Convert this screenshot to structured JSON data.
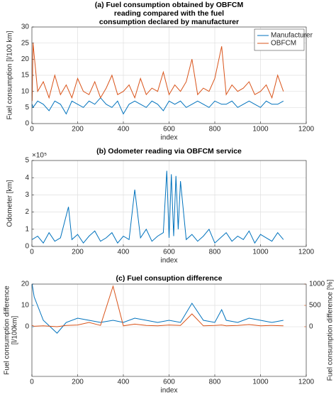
{
  "chart_data": [
    {
      "type": "line",
      "title": [
        "(a) Fuel consumption obtained by OBFCM",
        "reading compared with the fuel",
        "consumption declared by manufacturer"
      ],
      "xlabel": "index",
      "ylabel": [
        "Fuel consumption [l/100 km]"
      ],
      "x": [
        1,
        5,
        25,
        50,
        75,
        100,
        125,
        150,
        175,
        200,
        225,
        250,
        275,
        300,
        325,
        350,
        375,
        400,
        425,
        450,
        475,
        500,
        525,
        550,
        575,
        600,
        625,
        650,
        675,
        700,
        725,
        750,
        775,
        800,
        830,
        850,
        875,
        900,
        925,
        950,
        975,
        1000,
        1025,
        1050,
        1075,
        1100
      ],
      "series": [
        {
          "name": "Manufacturer",
          "color": "#0072BD",
          "values": [
            6,
            5,
            7,
            6,
            4,
            7,
            6,
            3,
            7,
            6,
            5,
            7,
            6,
            8,
            6,
            5,
            7,
            3,
            6,
            7,
            6,
            5,
            7,
            6,
            4,
            7,
            6,
            7,
            5,
            6,
            7,
            6,
            5,
            7,
            6,
            6,
            7,
            5,
            6,
            7,
            6,
            5,
            7,
            6,
            6,
            7
          ]
        },
        {
          "name": "OBFCM",
          "color": "#D95319",
          "values": [
            7,
            25,
            10,
            13,
            8,
            15,
            9,
            12,
            8,
            14,
            10,
            9,
            13,
            8,
            11,
            15,
            9,
            10,
            12,
            8,
            14,
            9,
            11,
            10,
            16,
            9,
            12,
            10,
            13,
            20,
            9,
            11,
            10,
            14,
            24,
            9,
            12,
            10,
            11,
            13,
            9,
            10,
            12,
            8,
            15,
            10
          ]
        }
      ],
      "xlim": [
        0,
        1200
      ],
      "xticks": [
        0,
        200,
        400,
        600,
        800,
        1000,
        1200
      ],
      "ylim": [
        0,
        30
      ],
      "yticks": [
        0,
        5,
        10,
        15,
        20,
        25,
        30
      ],
      "grid": true,
      "legend": "northeast"
    },
    {
      "type": "line",
      "title": [
        "(b) Odometer reading via OBFCM service"
      ],
      "xlabel": "index",
      "ylabel": [
        "Odometer [km]"
      ],
      "y_scale_label": "×10⁵",
      "x": [
        1,
        25,
        50,
        75,
        100,
        125,
        160,
        175,
        200,
        225,
        250,
        275,
        300,
        325,
        350,
        375,
        400,
        425,
        450,
        475,
        500,
        525,
        550,
        575,
        590,
        600,
        610,
        620,
        630,
        640,
        650,
        675,
        700,
        725,
        750,
        775,
        800,
        825,
        850,
        875,
        900,
        925,
        950,
        975,
        1000,
        1025,
        1050,
        1075,
        1100
      ],
      "series": [
        {
          "name": "Odometer",
          "color": "#0072BD",
          "values": [
            40000,
            60000,
            20000,
            80000,
            30000,
            50000,
            230000,
            40000,
            70000,
            20000,
            60000,
            90000,
            30000,
            50000,
            80000,
            20000,
            60000,
            40000,
            330000,
            50000,
            100000,
            30000,
            60000,
            80000,
            440000,
            50000,
            420000,
            60000,
            410000,
            100000,
            380000,
            40000,
            70000,
            30000,
            60000,
            100000,
            20000,
            50000,
            80000,
            30000,
            60000,
            40000,
            90000,
            20000,
            70000,
            50000,
            30000,
            80000,
            40000
          ]
        }
      ],
      "xlim": [
        0,
        1200
      ],
      "xticks": [
        0,
        200,
        400,
        600,
        800,
        1000,
        1200
      ],
      "ylim": [
        0,
        500000
      ],
      "yticks": [
        0,
        {
          "value": 100000,
          "label": "1"
        },
        {
          "value": 200000,
          "label": "2"
        },
        {
          "value": 300000,
          "label": "3"
        },
        {
          "value": 400000,
          "label": "4"
        },
        {
          "value": 500000,
          "label": "5"
        }
      ],
      "grid": true
    },
    {
      "type": "line",
      "title": [
        "(c) Fuel consuption difference"
      ],
      "xlabel": "index",
      "ylabel": [
        "Fuel consumption difference",
        "[l/100km]"
      ],
      "ylabel_color": "#0072BD",
      "y2label": "Fuel consumption difference [%]",
      "y2label_color": "#D95319",
      "x": [
        1,
        10,
        50,
        110,
        150,
        200,
        250,
        300,
        355,
        400,
        450,
        500,
        550,
        600,
        650,
        700,
        750,
        800,
        830,
        850,
        900,
        950,
        1000,
        1050,
        1100
      ],
      "series": [
        {
          "name": "Difference l/100km",
          "color": "#0072BD",
          "values": [
            20,
            14,
            3,
            -3,
            2,
            4,
            3,
            2,
            3,
            2,
            4,
            3,
            2,
            3,
            2,
            11,
            3,
            2,
            8,
            3,
            2,
            4,
            3,
            2,
            3
          ]
        },
        {
          "name": "Difference %",
          "color": "#D95319",
          "axis": "y2",
          "values": [
            30,
            10,
            20,
            0,
            30,
            40,
            100,
            30,
            950,
            20,
            60,
            30,
            20,
            40,
            30,
            300,
            20,
            30,
            40,
            20,
            30,
            50,
            20,
            30,
            20
          ]
        }
      ],
      "xlim": [
        0,
        1200
      ],
      "xticks": [
        0,
        200,
        400,
        600,
        800,
        1000,
        1200
      ],
      "ylim": [
        -23.3,
        20
      ],
      "yticks": [
        0,
        10,
        20
      ],
      "y2lim": [
        -1167,
        1000
      ],
      "y2ticks": [
        0,
        500,
        1000
      ],
      "grid": true
    }
  ]
}
